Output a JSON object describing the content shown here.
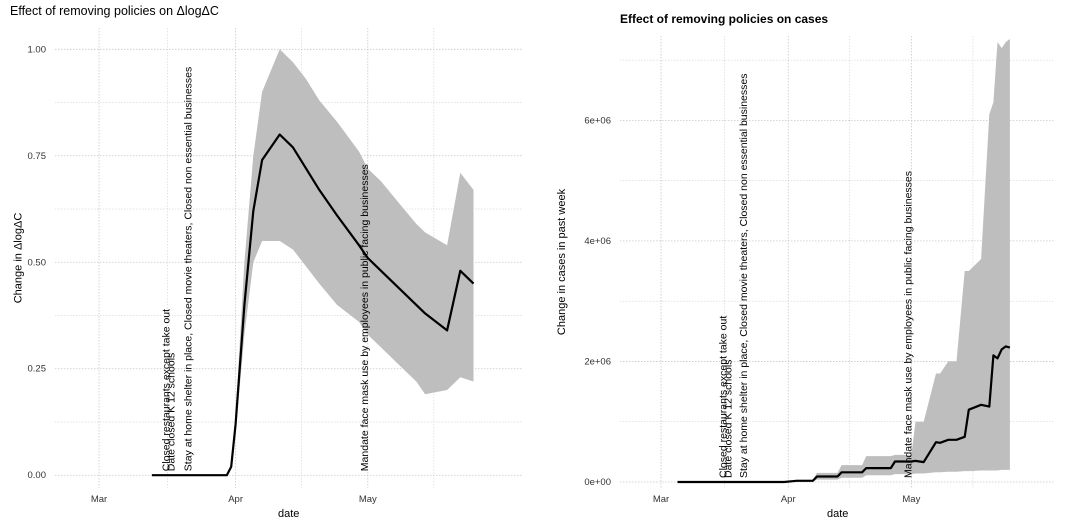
{
  "chart_data": [
    {
      "type": "line",
      "title": "Effect of removing policies on ΔlogΔC",
      "xlabel": "date",
      "ylabel": "Change in ΔlogΔC",
      "x_ticks": [
        "Mar",
        "Apr",
        "May"
      ],
      "x_tick_dates": [
        "2020-03-01",
        "2020-04-01",
        "2020-05-01"
      ],
      "xlim": [
        "2020-02-20",
        "2020-06-05"
      ],
      "ylim": [
        -0.03,
        1.05
      ],
      "y_ticks": [
        0.0,
        0.25,
        0.5,
        0.75,
        1.0
      ],
      "y_tick_labels": [
        "0.00",
        "0.25",
        "0.50",
        "0.75",
        "1.00"
      ],
      "grid": true,
      "series": [
        {
          "x": [
            "2020-03-13",
            "2020-03-20",
            "2020-03-25",
            "2020-03-30",
            "2020-03-31",
            "2020-04-01",
            "2020-04-03",
            "2020-04-05",
            "2020-04-07",
            "2020-04-11",
            "2020-04-14",
            "2020-04-17",
            "2020-04-20",
            "2020-04-24",
            "2020-04-29",
            "2020-05-01",
            "2020-05-04",
            "2020-05-08",
            "2020-05-12",
            "2020-05-14",
            "2020-05-19",
            "2020-05-22",
            "2020-05-25"
          ],
          "y": [
            0.0,
            0.0,
            0.0,
            0.0,
            0.02,
            0.12,
            0.4,
            0.62,
            0.74,
            0.8,
            0.77,
            0.72,
            0.67,
            0.61,
            0.54,
            0.51,
            0.48,
            0.44,
            0.4,
            0.38,
            0.34,
            0.48,
            0.45
          ],
          "lower": [
            0.0,
            0.0,
            0.0,
            0.0,
            0.02,
            0.1,
            0.33,
            0.5,
            0.55,
            0.55,
            0.53,
            0.49,
            0.45,
            0.4,
            0.36,
            0.33,
            0.3,
            0.26,
            0.22,
            0.19,
            0.2,
            0.23,
            0.22
          ],
          "upper": [
            0.0,
            0.0,
            0.0,
            0.0,
            0.02,
            0.14,
            0.5,
            0.75,
            0.9,
            1.0,
            0.97,
            0.93,
            0.88,
            0.83,
            0.76,
            0.72,
            0.69,
            0.64,
            0.59,
            0.57,
            0.54,
            0.71,
            0.67
          ]
        }
      ],
      "annotations": [
        {
          "date": "2020-03-17",
          "text": "Closed restaurants except take out"
        },
        {
          "date": "2020-03-17",
          "text": "Date closed K 12 schools"
        },
        {
          "date": "2020-03-22",
          "text": "Stay at home  shelter in place, Closed movie theaters, Closed non essential businesses"
        },
        {
          "date": "2020-05-01",
          "text": "Mandate face mask use by employees in public facing businesses"
        }
      ],
      "band_color": "#bebebe",
      "line_color": "#000000"
    },
    {
      "type": "line",
      "title": "Effect of removing policies on cases",
      "xlabel": "date",
      "ylabel": "Change in cases in past week",
      "x_ticks": [
        "Mar",
        "Apr",
        "May"
      ],
      "x_tick_dates": [
        "2020-03-01",
        "2020-04-01",
        "2020-05-01"
      ],
      "xlim": [
        "2020-02-20",
        "2020-06-05"
      ],
      "ylim": [
        -100000,
        7400000
      ],
      "y_ticks": [
        0,
        2000000,
        4000000,
        6000000
      ],
      "y_tick_labels": [
        "0e+00",
        "2e+06",
        "4e+06",
        "6e+06"
      ],
      "grid": true,
      "series": [
        {
          "x": [
            "2020-03-05",
            "2020-03-31",
            "2020-04-03",
            "2020-04-07",
            "2020-04-08",
            "2020-04-13",
            "2020-04-14",
            "2020-04-19",
            "2020-04-20",
            "2020-04-26",
            "2020-04-27",
            "2020-05-01",
            "2020-05-02",
            "2020-05-04",
            "2020-05-07",
            "2020-05-08",
            "2020-05-10",
            "2020-05-12",
            "2020-05-14",
            "2020-05-15",
            "2020-05-18",
            "2020-05-20",
            "2020-05-21",
            "2020-05-22",
            "2020-05-23",
            "2020-05-24",
            "2020-05-25"
          ],
          "y": [
            0,
            0,
            20000,
            20000,
            90000,
            90000,
            160000,
            160000,
            230000,
            230000,
            340000,
            340000,
            350000,
            330000,
            660000,
            650000,
            700000,
            700000,
            750000,
            1200000,
            1280000,
            1250000,
            2100000,
            2050000,
            2200000,
            2250000,
            2230000
          ],
          "lower": [
            0,
            0,
            10000,
            10000,
            40000,
            40000,
            70000,
            70000,
            110000,
            110000,
            130000,
            130000,
            140000,
            140000,
            160000,
            160000,
            170000,
            170000,
            180000,
            180000,
            190000,
            190000,
            190000,
            190000,
            200000,
            200000,
            200000
          ],
          "upper": [
            0,
            0,
            40000,
            40000,
            150000,
            150000,
            280000,
            280000,
            430000,
            430000,
            450000,
            450000,
            1000000,
            1000000,
            1800000,
            1800000,
            2000000,
            2000000,
            3500000,
            3500000,
            3700000,
            6100000,
            6300000,
            7300000,
            7200000,
            7300000,
            7350000
          ]
        }
      ],
      "annotations": [
        {
          "date": "2020-03-17",
          "text": "Closed restaurants except take out"
        },
        {
          "date": "2020-03-17",
          "text": "Date closed K 12 schools"
        },
        {
          "date": "2020-03-22",
          "text": "Stay at home  shelter in place, Closed movie theaters, Closed non essential businesses"
        },
        {
          "date": "2020-05-01",
          "text": "Mandate face mask use by employees in public facing businesses"
        }
      ],
      "band_color": "#bebebe",
      "line_color": "#000000"
    }
  ]
}
